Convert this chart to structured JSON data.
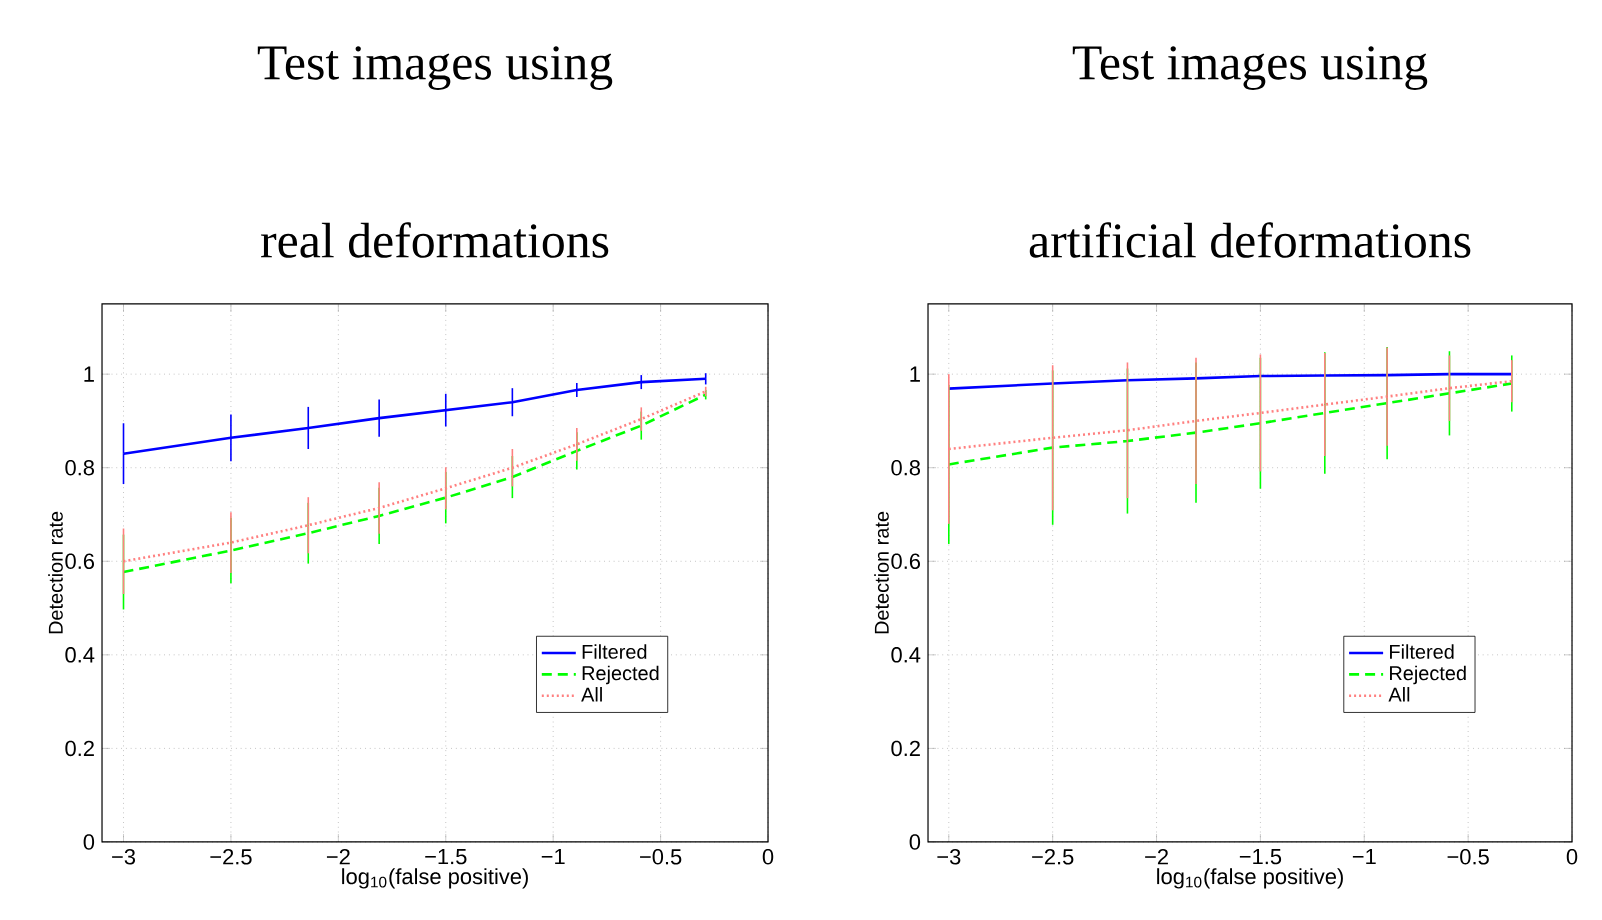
{
  "chart_data": [
    {
      "type": "line",
      "title": "Test images using",
      "subtitle": "real deformations",
      "xlabel": "log$_{10}$(false positive)",
      "ylabel": "Detection rate",
      "x": [
        -3,
        -2.5,
        -2.14,
        -1.81,
        -1.5,
        -1.19,
        -0.89,
        -0.59,
        -0.29
      ],
      "series": [
        {
          "name": "Filtered",
          "color": "#0000ff",
          "line_style": "solid",
          "values": [
            0.83,
            0.864,
            0.885,
            0.906,
            0.923,
            0.94,
            0.966,
            0.983,
            0.99
          ],
          "errors": [
            0.065,
            0.05,
            0.045,
            0.04,
            0.035,
            0.03,
            0.015,
            0.015,
            0.012
          ]
        },
        {
          "name": "Rejected",
          "color": "#00ff00",
          "line_style": "dashed",
          "values": [
            0.577,
            0.623,
            0.66,
            0.697,
            0.736,
            0.78,
            0.836,
            0.89,
            0.956
          ],
          "errors": [
            0.08,
            0.07,
            0.065,
            0.06,
            0.055,
            0.045,
            0.04,
            0.03,
            0.01
          ]
        },
        {
          "name": "All",
          "color": "#ff8080",
          "line_style": "dotted",
          "values": [
            0.6,
            0.64,
            0.677,
            0.714,
            0.756,
            0.8,
            0.85,
            0.904,
            0.963
          ],
          "errors": [
            0.07,
            0.065,
            0.06,
            0.055,
            0.045,
            0.04,
            0.035,
            0.025,
            0.01
          ]
        }
      ],
      "xlim": [
        -3.1,
        0
      ],
      "ylim": [
        0,
        1.15
      ],
      "xticks": [
        {
          "value": -3,
          "label": "−3"
        },
        {
          "value": -2.5,
          "label": "−2.5"
        },
        {
          "value": -2,
          "label": "−2"
        },
        {
          "value": -1.5,
          "label": "−1.5"
        },
        {
          "value": -1,
          "label": "−1"
        },
        {
          "value": -0.5,
          "label": "−0.5"
        },
        0
      ],
      "yticks": [
        0,
        0.2,
        0.4,
        0.6,
        0.8,
        1
      ],
      "grid": true,
      "legend": "bottom right"
    },
    {
      "type": "line",
      "title": "Test images using",
      "subtitle": "artificial deformations",
      "xlabel": "log$_{10}$(false positive)",
      "ylabel": "Detection rate",
      "x": [
        -3,
        -2.5,
        -2.14,
        -1.81,
        -1.5,
        -1.19,
        -0.89,
        -0.59,
        -0.29
      ],
      "series": [
        {
          "name": "Filtered",
          "color": "#0000ff",
          "line_style": "solid",
          "values": [
            0.969,
            0.98,
            0.987,
            0.991,
            0.996,
            0.997,
            0.998,
            1.0,
            1.0
          ]
        },
        {
          "name": "Rejected",
          "color": "#00ff00",
          "line_style": "dashed",
          "values": [
            0.807,
            0.843,
            0.857,
            0.875,
            0.895,
            0.917,
            0.938,
            0.959,
            0.98
          ],
          "errors": [
            0.17,
            0.165,
            0.155,
            0.15,
            0.14,
            0.13,
            0.12,
            0.09,
            0.06
          ]
        },
        {
          "name": "All",
          "color": "#ff8080",
          "line_style": "dotted",
          "values": [
            0.84,
            0.864,
            0.88,
            0.9,
            0.917,
            0.935,
            0.952,
            0.97,
            0.985
          ],
          "errors": [
            0.16,
            0.155,
            0.145,
            0.135,
            0.125,
            0.11,
            0.105,
            0.07,
            0.045
          ]
        }
      ],
      "xlim": [
        -3.1,
        0
      ],
      "ylim": [
        0,
        1.15
      ],
      "xticks": [
        {
          "value": -3,
          "label": "−3"
        },
        {
          "value": -2.5,
          "label": "−2.5"
        },
        {
          "value": -2,
          "label": "−2"
        },
        {
          "value": -1.5,
          "label": "−1.5"
        },
        {
          "value": -1,
          "label": "−1"
        },
        {
          "value": -0.5,
          "label": "−0.5"
        },
        0
      ],
      "yticks": [
        0,
        0.2,
        0.4,
        0.6,
        0.8,
        1
      ],
      "grid": true,
      "legend": "bottom right"
    }
  ]
}
